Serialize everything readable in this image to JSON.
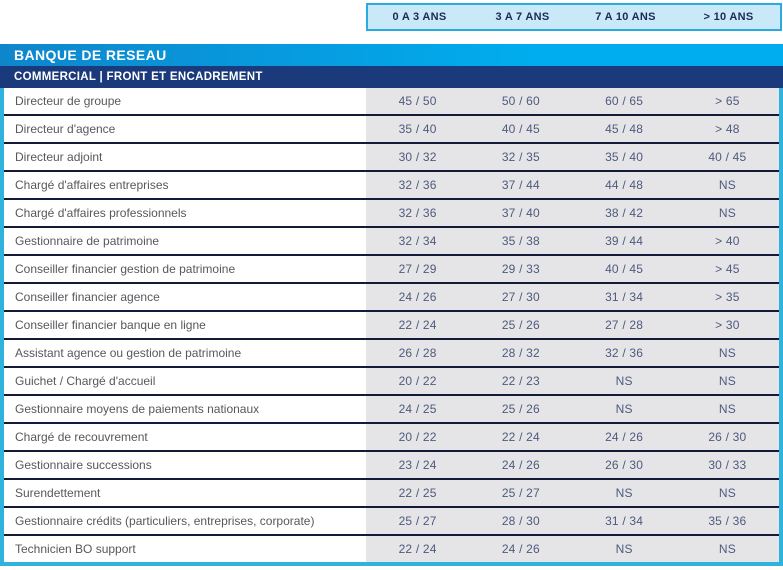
{
  "experience_headers": [
    "0 A 3 ANS",
    "3 A 7 ANS",
    "7 A 10 ANS",
    "> 10 ANS"
  ],
  "section_title": "BANQUE DE RESEAU",
  "subsection_title": "COMMERCIAL | FRONT ET ENCADREMENT",
  "rows": [
    {
      "label": "Directeur de groupe",
      "values": [
        "45 / 50",
        "50 / 60",
        "60 / 65",
        "> 65"
      ]
    },
    {
      "label": "Directeur d'agence",
      "values": [
        "35 / 40",
        "40 / 45",
        "45 / 48",
        "> 48"
      ]
    },
    {
      "label": "Directeur adjoint",
      "values": [
        "30 / 32",
        "32 / 35",
        "35 / 40",
        "40 / 45"
      ]
    },
    {
      "label": "Chargé d'affaires entreprises",
      "values": [
        "32 / 36",
        "37 / 44",
        "44 / 48",
        "NS"
      ]
    },
    {
      "label": "Chargé d'affaires professionnels",
      "values": [
        "32 / 36",
        "37 / 40",
        "38 / 42",
        "NS"
      ]
    },
    {
      "label": "Gestionnaire de patrimoine",
      "values": [
        "32 / 34",
        "35 / 38",
        "39 / 44",
        "> 40"
      ]
    },
    {
      "label": "Conseiller financier gestion de patrimoine",
      "values": [
        "27 / 29",
        "29 / 33",
        "40 / 45",
        "> 45"
      ]
    },
    {
      "label": "Conseiller financier agence",
      "values": [
        "24 / 26",
        "27 / 30",
        "31 / 34",
        "> 35"
      ]
    },
    {
      "label": "Conseiller financier banque en ligne",
      "values": [
        "22 / 24",
        "25 / 26",
        "27 / 28",
        "> 30"
      ]
    },
    {
      "label": "Assistant agence ou gestion de patrimoine",
      "values": [
        "26 / 28",
        "28 / 32",
        "32 / 36",
        "NS"
      ]
    },
    {
      "label": "Guichet / Chargé d'accueil",
      "values": [
        "20 / 22",
        "22 / 23",
        "NS",
        "NS"
      ]
    },
    {
      "label": "Gestionnaire moyens de paiements nationaux",
      "values": [
        "24 / 25",
        "25 / 26",
        "NS",
        "NS"
      ]
    },
    {
      "label": "Chargé de recouvrement",
      "values": [
        "20 / 22",
        "22 / 24",
        "24 / 26",
        "26 / 30"
      ]
    },
    {
      "label": "Gestionnaire successions",
      "values": [
        "23 / 24",
        "24 / 26",
        "26 / 30",
        "30 / 33"
      ]
    },
    {
      "label": "Surendettement",
      "values": [
        "22 / 25",
        "25 / 27",
        "NS",
        "NS"
      ]
    },
    {
      "label": "Gestionnaire crédits (particuliers, entreprises, corporate)",
      "values": [
        "25 / 27",
        "28 / 30",
        "31 / 34",
        "35 / 36"
      ]
    },
    {
      "label": "Technicien BO support",
      "values": [
        "22 / 24",
        "24 / 26",
        "NS",
        "NS"
      ]
    }
  ],
  "colors": {
    "accent_cyan_border": "#2fb2dc",
    "exp_header_fill": "#c9e8f8",
    "exp_header_border": "#29abe2",
    "exp_header_text": "#1b2a55",
    "band_blue_left": "#0e86cc",
    "band_blue_right": "#00aeef",
    "band_navy": "#1b3a7b",
    "row_separator": "#141b38",
    "values_background": "#e5e5e7",
    "value_text": "#4e5a7e",
    "label_text": "#57585c"
  }
}
